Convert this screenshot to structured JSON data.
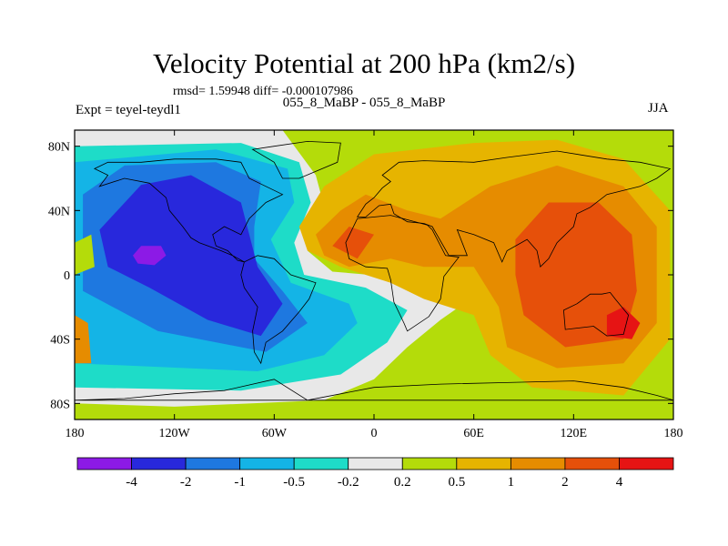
{
  "header": {
    "title": "Velocity Potential at 200 hPa (km2/s)",
    "stats": "rmsd= 1.59948 diff= -0.000107986",
    "cases": "055_8_MaBP - 055_8_MaBP",
    "experiment": "Expt = teyel-teydl1",
    "season": "JJA"
  },
  "chart_data": {
    "type": "heatmap",
    "title": "Velocity Potential at 200 hPa (km2/s)",
    "units": "km2/s",
    "xlabel": "",
    "ylabel": "",
    "x_range": [
      -180,
      180
    ],
    "y_range": [
      -90,
      90
    ],
    "x_ticks": [
      {
        "value": -180,
        "label": "180"
      },
      {
        "value": -120,
        "label": "120W"
      },
      {
        "value": -60,
        "label": "60W"
      },
      {
        "value": 0,
        "label": "0"
      },
      {
        "value": 60,
        "label": "60E"
      },
      {
        "value": 120,
        "label": "120E"
      },
      {
        "value": 180,
        "label": "180"
      }
    ],
    "y_ticks": [
      {
        "value": 80,
        "label": "80N"
      },
      {
        "value": 40,
        "label": "40N"
      },
      {
        "value": 0,
        "label": "0"
      },
      {
        "value": -40,
        "label": "40S"
      },
      {
        "value": -80,
        "label": "80S"
      }
    ],
    "contour_levels": [
      "-4",
      "-2",
      "-1",
      "-0.5",
      "-0.2",
      "0.2",
      "0.5",
      "1",
      "2",
      "4"
    ],
    "colorbar_colors": [
      "#8c1ae6",
      "#2828dc",
      "#1e78e0",
      "#14b4e6",
      "#1edcc8",
      "#e8e8e8",
      "#b4dc0a",
      "#e6b400",
      "#e68c00",
      "#e6500a",
      "#e61414"
    ],
    "centers": [
      {
        "name": "eastern Pacific minimum",
        "lon": -132,
        "lat": 11,
        "value": -4
      },
      {
        "name": "Asian monsoon maximum",
        "lon": 120,
        "lat": 10,
        "value": 2
      },
      {
        "name": "Atlantic/African maximum",
        "lon": -15,
        "lat": 15,
        "value": 2
      }
    ]
  }
}
